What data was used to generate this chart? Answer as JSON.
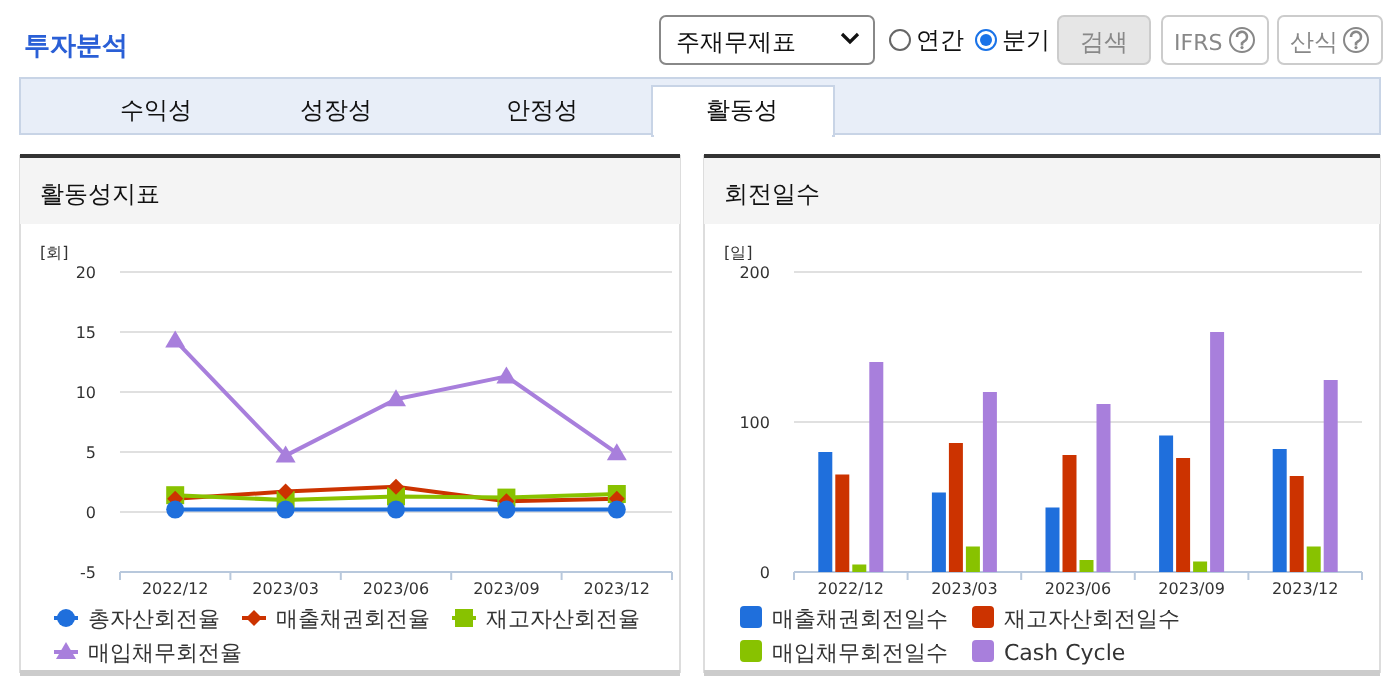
{
  "chart_data": [
    {
      "type": "other",
      "title": "투자분석",
      "annotations": [
        "주재무제표",
        "연간",
        "분기",
        "검색",
        "IFRS",
        "산식",
        "수익성",
        "성장성",
        "안정성",
        "활동성"
      ]
    },
    {
      "type": "line",
      "title": "활동성지표",
      "ylabel": "[회]",
      "categories": [
        "2022/12",
        "2023/03",
        "2023/06",
        "2023/09",
        "2023/12"
      ],
      "ylim": [
        -5,
        20
      ],
      "yticks": [
        -5,
        0,
        5,
        10,
        15,
        20
      ],
      "grid": "y",
      "legend": "bottom",
      "series": [
        {
          "name": "총자산회전율",
          "color": "#1f6fdc",
          "marker": "circle",
          "values": [
            0.2,
            0.2,
            0.2,
            0.2,
            0.2
          ]
        },
        {
          "name": "매출채권회전율",
          "color": "#cc3300",
          "marker": "diamond",
          "values": [
            1.1,
            1.7,
            2.1,
            0.9,
            1.1
          ]
        },
        {
          "name": "재고자산회전율",
          "color": "#88c200",
          "marker": "square",
          "values": [
            1.4,
            1.0,
            1.3,
            1.2,
            1.5
          ]
        },
        {
          "name": "매입채무회전율",
          "color": "#a87fdc",
          "marker": "triangle",
          "values": [
            14.3,
            4.7,
            9.4,
            11.3,
            4.9
          ]
        }
      ]
    },
    {
      "type": "bar",
      "title": "회전일수",
      "ylabel": "[일]",
      "categories": [
        "2022/12",
        "2023/03",
        "2023/06",
        "2023/09",
        "2023/12"
      ],
      "ylim": [
        0,
        200
      ],
      "yticks": [
        0,
        100,
        200
      ],
      "grid": "y",
      "legend": "bottom",
      "series": [
        {
          "name": "매출채권회전일수",
          "color": "#1f6fdc",
          "values": [
            80,
            53,
            43,
            91,
            82
          ]
        },
        {
          "name": "재고자산회전일수",
          "color": "#cc3300",
          "values": [
            65,
            86,
            78,
            76,
            64
          ]
        },
        {
          "name": "매입채무회전일수",
          "color": "#88c200",
          "values": [
            5,
            17,
            8,
            7,
            17
          ]
        },
        {
          "name": "Cash Cycle",
          "color": "#a87fdc",
          "values": [
            140,
            120,
            112,
            160,
            128
          ]
        }
      ]
    }
  ]
}
